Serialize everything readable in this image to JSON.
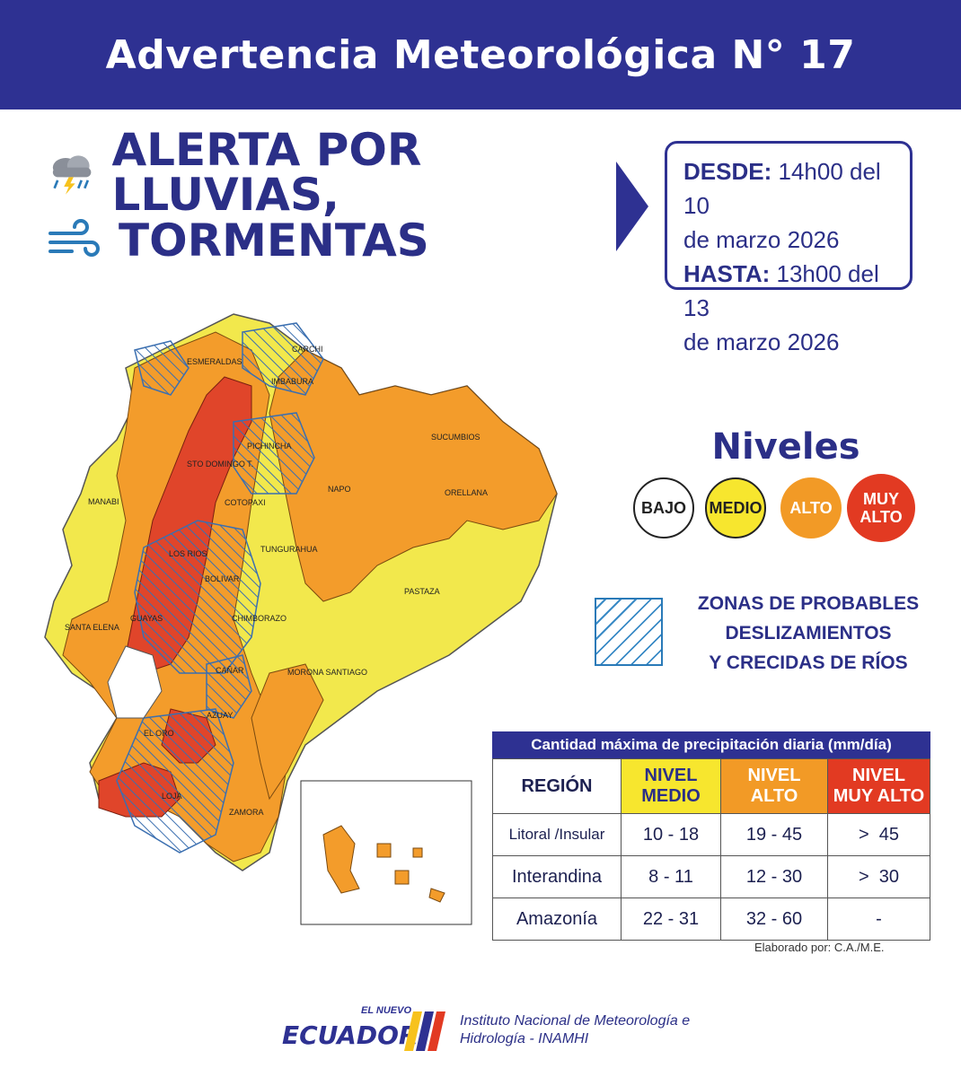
{
  "header": {
    "title": "Advertencia Meteorológica N° 17"
  },
  "alert": {
    "line1": "ALERTA POR LLUVIAS,",
    "line2": "TORMENTAS"
  },
  "dates": {
    "desde_label": "DESDE:",
    "desde_value": "14h00 del 10",
    "desde_cont": "de marzo 2026",
    "hasta_label": "HASTA:",
    "hasta_value": "13h00 del 13",
    "hasta_cont": "de marzo 2026"
  },
  "levels": {
    "title": "Niveles",
    "items": [
      {
        "label": "BAJO",
        "color": "#ffffff"
      },
      {
        "label": "MEDIO",
        "color": "#f7e62e"
      },
      {
        "label": "ALTO",
        "color": "#f29a26"
      },
      {
        "label": "MUY ALTO",
        "color": "#e23a22"
      }
    ]
  },
  "legend": {
    "line1": "ZONAS DE PROBABLES",
    "line2": "DESLIZAMIENTOS",
    "line3": "Y CRECIDAS DE RÍOS"
  },
  "map": {
    "labels": [
      "ESMERALDAS",
      "CARCHI",
      "IMBABURA",
      "SUCUMBIOS",
      "PICHINCHA",
      "STO DOMINGO T.",
      "MANABI",
      "NAPO",
      "ORELLANA",
      "COTOPAXI",
      "TUNGURAHUA",
      "LOS RIOS",
      "BOLIVAR",
      "PASTAZA",
      "CHIMBORAZO",
      "SANTA ELENA",
      "GUAYAS",
      "MORONA SANTIAGO",
      "CAÑAR",
      "AZUAY",
      "EL ORO",
      "LOJA",
      "ZAMORA"
    ]
  },
  "table": {
    "title": "Cantidad máxima de precipitación diaria (mm/día)",
    "col_region": "REGIÓN",
    "col_medio": [
      "NIVEL",
      "MEDIO"
    ],
    "col_alto": [
      "NIVEL",
      "ALTO"
    ],
    "col_muy_alto": [
      "NIVEL",
      "MUY ALTO"
    ],
    "rows": [
      {
        "region": "Litoral /Insular",
        "medio": "10 - 18",
        "alto": "19 - 45",
        "muy_alto": ">  45"
      },
      {
        "region": "Interandina",
        "medio": "8 - 11",
        "alto": "12 - 30",
        "muy_alto": ">  30"
      },
      {
        "region": "Amazonía",
        "medio": "22 - 31",
        "alto": "32 - 60",
        "muy_alto": "-"
      }
    ]
  },
  "credit": "Elaborado por: C.A./M.E.",
  "footer": {
    "logo_top": "EL NUEVO",
    "logo_main": "ECUADOR",
    "institute_line1": "Instituto Nacional de Meteorología e",
    "institute_line2": "Hidrología - INAMHI"
  }
}
